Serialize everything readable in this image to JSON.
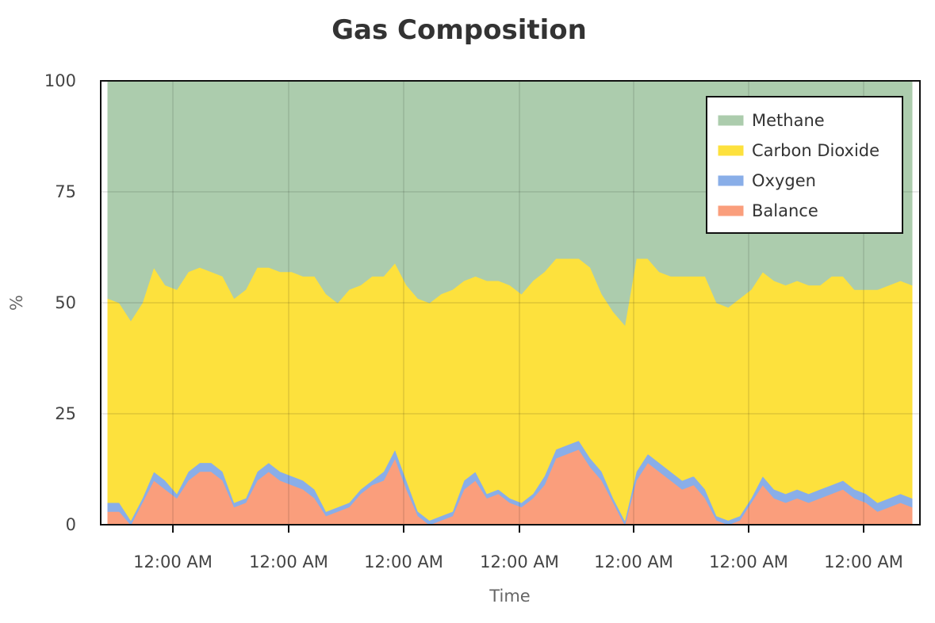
{
  "chart_data": {
    "type": "area",
    "stacked": true,
    "title": "Gas Composition",
    "xlabel": "Time",
    "ylabel": "%",
    "ylim": [
      0,
      100
    ],
    "yticks": [
      0,
      25,
      50,
      75,
      100
    ],
    "xtick_labels": [
      "12:00 AM",
      "12:00 AM",
      "12:00 AM",
      "12:00 AM",
      "12:00 AM",
      "12:00 AM",
      "12:00 AM"
    ],
    "grid": true,
    "legend_position": "top-right",
    "x": [
      0,
      1,
      2,
      3,
      4,
      5,
      6,
      7,
      8,
      9,
      10,
      11,
      12,
      13,
      14,
      15,
      16,
      17,
      18,
      19,
      20,
      21,
      22,
      23,
      24,
      25,
      26,
      27,
      28,
      29,
      30,
      31,
      32,
      33,
      34,
      35,
      36,
      37,
      38,
      39,
      40,
      41,
      42,
      43,
      44,
      45,
      46,
      47,
      48,
      49,
      50,
      51,
      52,
      53,
      54,
      55,
      56,
      57,
      58,
      59,
      60,
      61,
      62,
      63,
      64,
      65,
      66,
      67,
      68,
      69,
      70
    ],
    "series": [
      {
        "name": "Balance",
        "color": "#fa9e7c",
        "values": [
          3,
          3,
          0,
          5,
          10,
          8,
          6,
          10,
          12,
          12,
          10,
          4,
          5,
          10,
          12,
          10,
          9,
          8,
          6,
          2,
          3,
          4,
          7,
          9,
          10,
          15,
          8,
          2,
          0,
          1,
          2,
          8,
          10,
          6,
          7,
          5,
          4,
          6,
          9,
          15,
          16,
          17,
          13,
          10,
          5,
          0,
          10,
          14,
          12,
          10,
          8,
          9,
          6,
          1,
          0,
          1,
          5,
          9,
          6,
          5,
          6,
          5,
          6,
          7,
          8,
          6,
          5,
          3,
          4,
          5,
          4
        ]
      },
      {
        "name": "Oxygen",
        "color": "#89aee8",
        "values": [
          2,
          2,
          1,
          1,
          2,
          2,
          1,
          2,
          2,
          2,
          2,
          1,
          1,
          2,
          2,
          2,
          2,
          2,
          2,
          1,
          1,
          1,
          1,
          1,
          2,
          2,
          2,
          1,
          1,
          1,
          1,
          2,
          2,
          1,
          1,
          1,
          1,
          1,
          2,
          2,
          2,
          2,
          2,
          2,
          1,
          1,
          2,
          2,
          2,
          2,
          2,
          2,
          2,
          1,
          1,
          1,
          1,
          2,
          2,
          2,
          2,
          2,
          2,
          2,
          2,
          2,
          2,
          2,
          2,
          2,
          2
        ]
      },
      {
        "name": "Carbon Dioxide",
        "color": "#fde13d",
        "values": [
          46,
          45,
          45,
          44,
          46,
          44,
          46,
          45,
          44,
          43,
          44,
          46,
          47,
          46,
          44,
          45,
          46,
          46,
          48,
          49,
          46,
          48,
          46,
          46,
          44,
          42,
          44,
          48,
          49,
          50,
          50,
          45,
          44,
          48,
          47,
          48,
          47,
          48,
          46,
          43,
          42,
          41,
          43,
          40,
          42,
          44,
          48,
          44,
          43,
          44,
          46,
          45,
          48,
          48,
          48,
          49,
          47,
          46,
          47,
          47,
          47,
          47,
          46,
          47,
          46,
          45,
          46,
          48,
          48,
          48,
          48
        ]
      },
      {
        "name": "Methane",
        "color": "#acccad",
        "values": [
          49,
          50,
          54,
          50,
          42,
          46,
          47,
          43,
          42,
          43,
          44,
          49,
          47,
          42,
          42,
          43,
          43,
          44,
          44,
          48,
          50,
          47,
          46,
          44,
          44,
          41,
          46,
          49,
          50,
          48,
          47,
          45,
          44,
          45,
          45,
          46,
          48,
          45,
          43,
          40,
          40,
          40,
          42,
          48,
          52,
          55,
          40,
          40,
          43,
          44,
          44,
          44,
          44,
          50,
          51,
          49,
          47,
          43,
          45,
          46,
          45,
          46,
          46,
          44,
          44,
          47,
          47,
          47,
          46,
          45,
          46
        ]
      }
    ]
  }
}
